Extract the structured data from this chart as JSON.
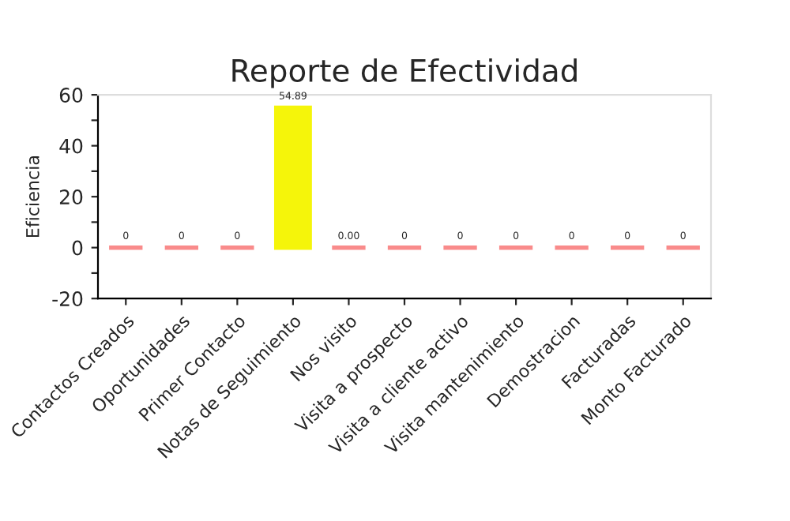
{
  "chart_data": {
    "type": "bar",
    "title": "Reporte de Efectividad",
    "ylabel": "Eficiencia",
    "categories": [
      "Contactos Creados",
      "Oportunidades",
      "Primer Contacto",
      "Notas de Seguimiento",
      "Nos visito",
      "Visita a prospecto",
      "Visita a cliente activo",
      "Visita mantenimiento",
      "Demostracion",
      "Facturadas",
      "Monto Facturado"
    ],
    "values": [
      0,
      0,
      0,
      54.89,
      0,
      0,
      0,
      0,
      0,
      0,
      0
    ],
    "value_labels": [
      "0",
      "0",
      "0",
      "54.89",
      "0.00",
      "0",
      "0",
      "0",
      "0",
      "0",
      "0"
    ],
    "colors": [
      "#f98b8b",
      "#f98b8b",
      "#f98b8b",
      "#f5f50a",
      "#f98b8b",
      "#f98b8b",
      "#f98b8b",
      "#f98b8b",
      "#f98b8b",
      "#f98b8b",
      "#f98b8b"
    ],
    "ylim": [
      -20,
      60
    ],
    "yticks": [
      -20,
      {
        "value": -10,
        "label": null
      },
      0,
      {
        "value": 10,
        "label": null
      },
      20,
      {
        "value": 30,
        "label": null
      },
      40,
      {
        "value": 50,
        "label": null
      },
      60
    ],
    "grid": false,
    "legend": false
  }
}
